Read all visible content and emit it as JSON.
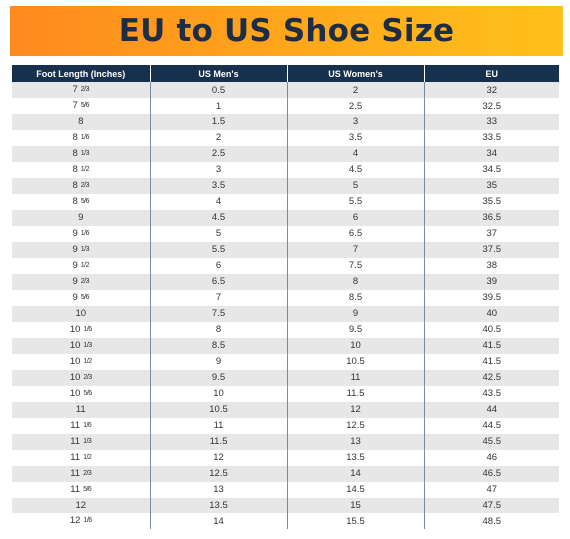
{
  "title": "EU to US Shoe Size",
  "table": {
    "headers": [
      "Foot Length (Inches)",
      "US Men's",
      "US Women's",
      "EU"
    ],
    "rows": [
      [
        {
          "whole": "7",
          "frac": "2/3"
        },
        "0.5",
        "2",
        "32"
      ],
      [
        {
          "whole": "7",
          "frac": "5/6"
        },
        "1",
        "2.5",
        "32.5"
      ],
      [
        {
          "whole": "8",
          "frac": ""
        },
        "1.5",
        "3",
        "33"
      ],
      [
        {
          "whole": "8",
          "frac": "1/6"
        },
        "2",
        "3.5",
        "33.5"
      ],
      [
        {
          "whole": "8",
          "frac": "1/3"
        },
        "2.5",
        "4",
        "34"
      ],
      [
        {
          "whole": "8",
          "frac": "1/2"
        },
        "3",
        "4.5",
        "34.5"
      ],
      [
        {
          "whole": "8",
          "frac": "2/3"
        },
        "3.5",
        "5",
        "35"
      ],
      [
        {
          "whole": "8",
          "frac": "5/6"
        },
        "4",
        "5.5",
        "35.5"
      ],
      [
        {
          "whole": "9",
          "frac": ""
        },
        "4.5",
        "6",
        "36.5"
      ],
      [
        {
          "whole": "9",
          "frac": "1/6"
        },
        "5",
        "6.5",
        "37"
      ],
      [
        {
          "whole": "9",
          "frac": "1/3"
        },
        "5.5",
        "7",
        "37.5"
      ],
      [
        {
          "whole": "9",
          "frac": "1/2"
        },
        "6",
        "7.5",
        "38"
      ],
      [
        {
          "whole": "9",
          "frac": "2/3"
        },
        "6.5",
        "8",
        "39"
      ],
      [
        {
          "whole": "9",
          "frac": "5/6"
        },
        "7",
        "8.5",
        "39.5"
      ],
      [
        {
          "whole": "10",
          "frac": ""
        },
        "7.5",
        "9",
        "40"
      ],
      [
        {
          "whole": "10",
          "frac": "1/6"
        },
        "8",
        "9.5",
        "40.5"
      ],
      [
        {
          "whole": "10",
          "frac": "1/3"
        },
        "8.5",
        "10",
        "41.5"
      ],
      [
        {
          "whole": "10",
          "frac": "1/2"
        },
        "9",
        "10.5",
        "41.5"
      ],
      [
        {
          "whole": "10",
          "frac": "2/3"
        },
        "9.5",
        "11",
        "42.5"
      ],
      [
        {
          "whole": "10",
          "frac": "5/6"
        },
        "10",
        "11.5",
        "43.5"
      ],
      [
        {
          "whole": "11",
          "frac": ""
        },
        "10.5",
        "12",
        "44"
      ],
      [
        {
          "whole": "11",
          "frac": "1/6"
        },
        "11",
        "12.5",
        "44.5"
      ],
      [
        {
          "whole": "11",
          "frac": "1/3"
        },
        "11.5",
        "13",
        "45.5"
      ],
      [
        {
          "whole": "11",
          "frac": "1/2"
        },
        "12",
        "13.5",
        "46"
      ],
      [
        {
          "whole": "11",
          "frac": "2/3"
        },
        "12.5",
        "14",
        "46.5"
      ],
      [
        {
          "whole": "11",
          "frac": "5/6"
        },
        "13",
        "14.5",
        "47"
      ],
      [
        {
          "whole": "12",
          "frac": ""
        },
        "13.5",
        "15",
        "47.5"
      ],
      [
        {
          "whole": "12",
          "frac": "1/6"
        },
        "14",
        "15.5",
        "48.5"
      ]
    ]
  },
  "colors": {
    "banner_start": "#ff8a1e",
    "banner_end": "#ffc11b",
    "title_text": "#1d2d44",
    "header_bg": "#17304d",
    "row_alt": "#e7e7e7",
    "column_divider": "#6f8fa8"
  }
}
